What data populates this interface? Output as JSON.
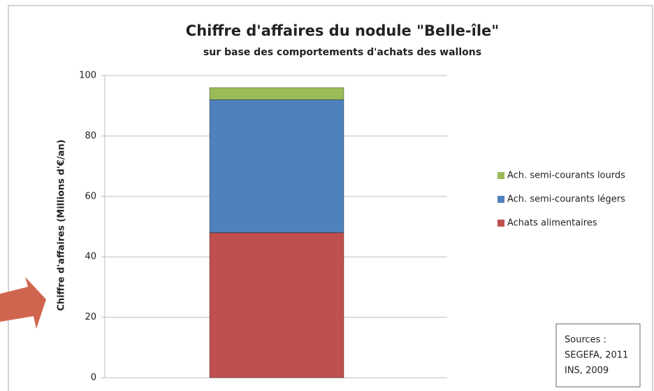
{
  "chart_data": {
    "type": "stacked_bar",
    "title": "Chiffre d'affaires du nodule \"Belle-île\"",
    "subtitle": "sur base des comportements d'achats des wallons",
    "y_label": "Chiffre d'affaires (Millions d'€/an)",
    "categories": [
      null
    ],
    "series": [
      {
        "name": "Achats alimentaires",
        "color": "#c0504d",
        "values": [
          48
        ]
      },
      {
        "name": "Ach. semi-courants légers",
        "color": "#4f81bd",
        "values": [
          44
        ]
      },
      {
        "name": "Ach. semi-courants lourds",
        "color": "#9bbb59",
        "values": [
          4
        ]
      }
    ],
    "ylim": [
      0,
      100
    ],
    "yticks": [
      0,
      20,
      40,
      60,
      80,
      100
    ],
    "grid": true,
    "legend": "right",
    "annotation": [
      "Sources :",
      "SEGEFA, 2011",
      "INS, 2009"
    ]
  }
}
